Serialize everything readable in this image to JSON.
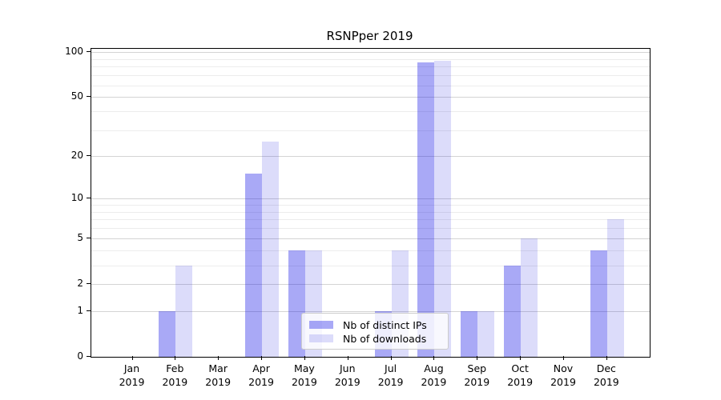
{
  "title": "RSNPper 2019",
  "chart_data": {
    "type": "bar",
    "title": "RSNPper 2019",
    "y_scale": "log10(1+x)",
    "categories": [
      "Jan",
      "Feb",
      "Mar",
      "Apr",
      "May",
      "Jun",
      "Jul",
      "Aug",
      "Sep",
      "Oct",
      "Nov",
      "Dec"
    ],
    "category_year": "2019",
    "series": [
      {
        "name": "Nb of distinct IPs",
        "color": "#0a0ae6",
        "opacity": 0.35,
        "values": [
          0,
          1,
          0,
          15,
          4,
          0,
          1,
          85,
          1,
          3,
          0,
          4
        ]
      },
      {
        "name": "Nb of downloads",
        "color": "#0a0adc",
        "opacity": 0.14,
        "values": [
          0,
          3,
          0,
          25,
          4,
          0,
          4,
          87,
          1,
          5,
          0,
          7
        ]
      }
    ],
    "ylim": [
      0,
      100
    ],
    "y_major_ticks": [
      0,
      1,
      2,
      5,
      10,
      20,
      50,
      100
    ],
    "y_minor_gridlines": [
      3,
      4,
      6,
      7,
      8,
      9,
      30,
      40,
      60,
      70,
      80,
      90
    ],
    "grid": "horizontal",
    "legend_position": "lower center"
  },
  "colors": {
    "major_grid": "#d4d4d4",
    "minor_grid": "#ececec",
    "axis": "#000000"
  }
}
